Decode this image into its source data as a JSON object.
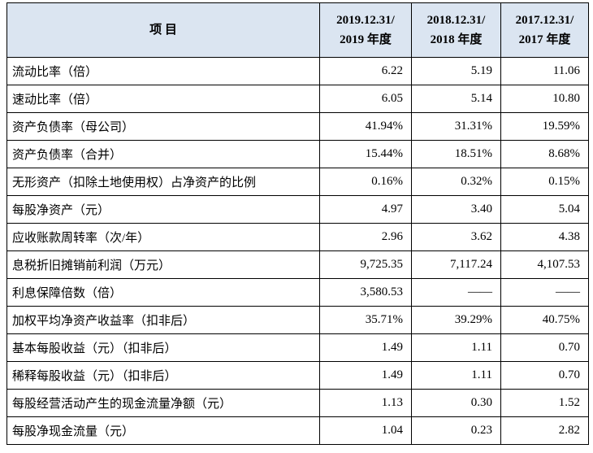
{
  "table": {
    "header": [
      [
        "项 目"
      ],
      [
        "2019.12.31/",
        "2019 年度"
      ],
      [
        "2018.12.31/",
        "2018 年度"
      ],
      [
        "2017.12.31/",
        "2017 年度"
      ]
    ],
    "rows": [
      [
        "流动比率（倍）",
        "6.22",
        "5.19",
        "11.06"
      ],
      [
        "速动比率（倍）",
        "6.05",
        "5.14",
        "10.80"
      ],
      [
        "资产负债率（母公司）",
        "41.94%",
        "31.31%",
        "19.59%"
      ],
      [
        "资产负债率（合并）",
        "15.44%",
        "18.51%",
        "8.68%"
      ],
      [
        "无形资产（扣除土地使用权）占净资产的比例",
        "0.16%",
        "0.32%",
        "0.15%"
      ],
      [
        "每股净资产（元）",
        "4.97",
        "3.40",
        "5.04"
      ],
      [
        "应收账款周转率（次/年）",
        "2.96",
        "3.62",
        "4.38"
      ],
      [
        "息税折旧摊销前利润（万元）",
        "9,725.35",
        "7,117.24",
        "4,107.53"
      ],
      [
        "利息保障倍数（倍）",
        "3,580.53",
        "——",
        "——"
      ],
      [
        "加权平均净资产收益率（扣非后）",
        "35.71%",
        "39.29%",
        "40.75%"
      ],
      [
        "基本每股收益（元）（扣非后）",
        "1.49",
        "1.11",
        "0.70"
      ],
      [
        "稀释每股收益（元）（扣非后）",
        "1.49",
        "1.11",
        "0.70"
      ],
      [
        "每股经营活动产生的现金流量净额（元）",
        "1.13",
        "0.30",
        "1.52"
      ],
      [
        "每股净现金流量（元）",
        "1.04",
        "0.23",
        "2.82"
      ]
    ]
  }
}
